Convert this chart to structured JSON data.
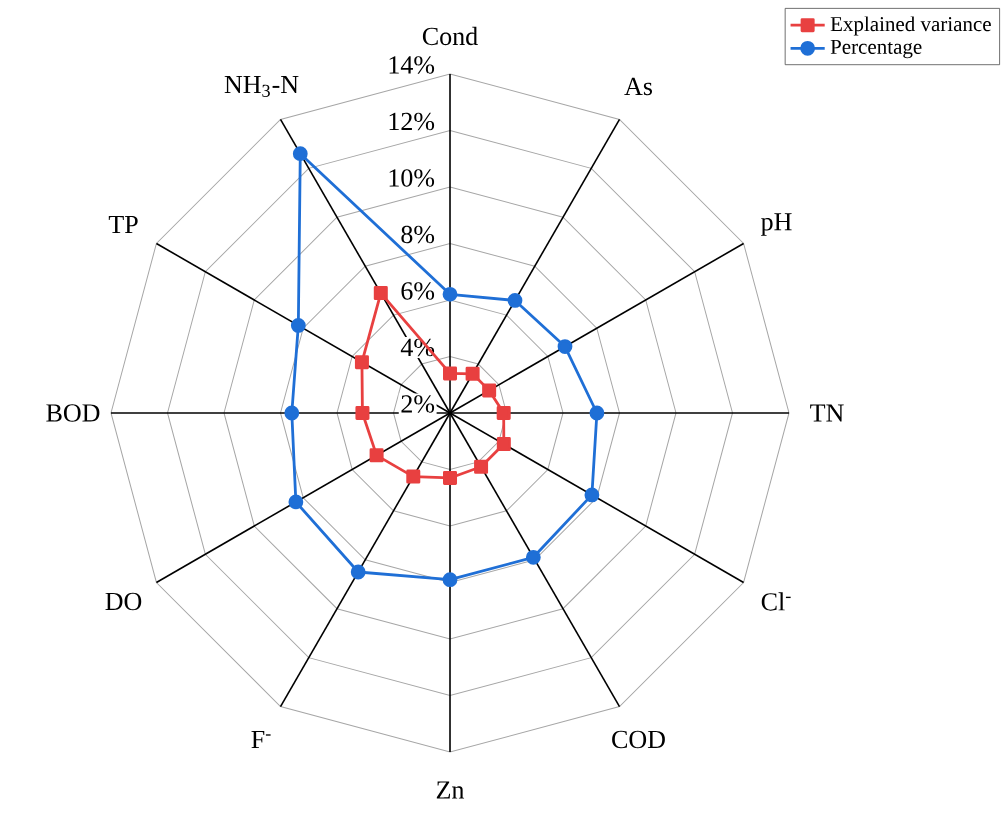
{
  "chart_data": {
    "type": "radar",
    "categories": [
      "Cond",
      "As",
      "pH",
      "TN",
      "Cl$^{-}$",
      "COD",
      "Zn",
      "F$^{-}$",
      "DO",
      "BOD",
      "TP",
      "NH$_{3}$-N"
    ],
    "series": [
      {
        "name": "Explained variance",
        "color": "#e84040",
        "marker": "square",
        "values": [
          3.4,
          3.6,
          3.6,
          3.9,
          4.2,
          4.2,
          4.3,
          4.6,
          5.0,
          5.1,
          5.6,
          6.9
        ]
      },
      {
        "name": "Percentage",
        "color": "#1f6fd6",
        "marker": "circle",
        "values": [
          6.2,
          6.6,
          6.7,
          7.2,
          7.8,
          7.9,
          7.9,
          8.5,
          8.3,
          7.6,
          8.2,
          12.6
        ]
      }
    ],
    "ylim": [
      2,
      14
    ],
    "yticks": [
      {
        "value": 2,
        "label": "2%"
      },
      {
        "value": 4,
        "label": "4%"
      },
      {
        "value": 6,
        "label": "6%"
      },
      {
        "value": 8,
        "label": "8%"
      },
      {
        "value": 10,
        "label": "10%"
      },
      {
        "value": 12,
        "label": "12%"
      },
      {
        "value": 14,
        "label": "14%"
      }
    ],
    "grid": true,
    "legend": "top right"
  }
}
